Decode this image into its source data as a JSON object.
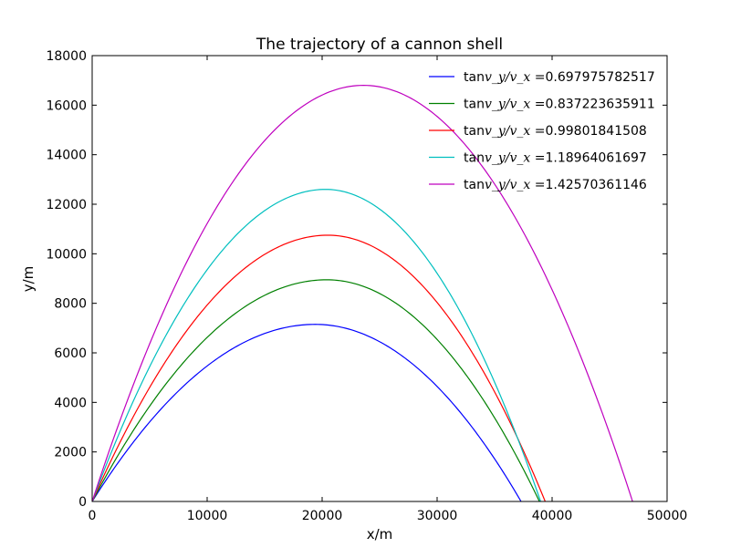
{
  "chart_data": {
    "type": "line",
    "title": "The trajectory of a cannon shell",
    "xlabel": "x/m",
    "ylabel": "y/m",
    "xlim": [
      0,
      50000
    ],
    "ylim": [
      0,
      18000
    ],
    "xticks": [
      0,
      10000,
      20000,
      30000,
      40000,
      50000
    ],
    "yticks": [
      0,
      2000,
      4000,
      6000,
      8000,
      10000,
      12000,
      14000,
      16000,
      18000
    ],
    "grid": false,
    "legend_position": "top-right",
    "legend_prefix": "tan",
    "legend_ratio": "v_y/v_x =",
    "series": [
      {
        "name": "0.697975782517",
        "color": "#0000ff",
        "apex": [
          19400,
          7150
        ],
        "range": 37300
      },
      {
        "name": "0.837223635911",
        "color": "#008000",
        "apex": [
          20400,
          8950
        ],
        "range": 38900
      },
      {
        "name": "0.99801841508",
        "color": "#ff0000",
        "apex": [
          20500,
          10750
        ],
        "range": 39400
      },
      {
        "name": "1.18964061697",
        "color": "#00bfbf",
        "apex": [
          20300,
          12600
        ],
        "range": 39000
      },
      {
        "name": "1.42570361146",
        "color": "#bf00bf",
        "apex": [
          23600,
          16800
        ],
        "range": 47000
      }
    ]
  }
}
